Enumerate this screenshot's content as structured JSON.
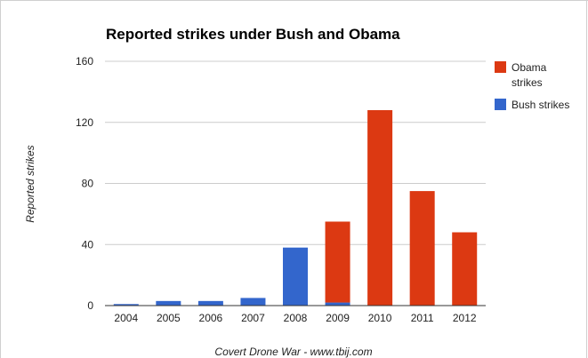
{
  "colors": {
    "obama": "#dc3912",
    "bush": "#3366cc",
    "grid": "#cccccc",
    "axis": "#333333"
  },
  "chart_data": {
    "type": "bar",
    "stacked": true,
    "title": "Reported strikes under Bush and Obama",
    "xlabel": "",
    "ylabel": "Reported strikes",
    "ylim": [
      0,
      160
    ],
    "yticks": [
      0,
      40,
      80,
      120,
      160
    ],
    "grid": true,
    "legend_position": "right",
    "categories": [
      "2004",
      "2005",
      "2006",
      "2007",
      "2008",
      "2009",
      "2010",
      "2011",
      "2012"
    ],
    "series": [
      {
        "name": "Bush strikes",
        "color": "#3366cc",
        "values": [
          1,
          3,
          3,
          5,
          38,
          2,
          0,
          0,
          0
        ]
      },
      {
        "name": "Obama strikes",
        "color": "#dc3912",
        "values": [
          0,
          0,
          0,
          0,
          0,
          53,
          128,
          75,
          48
        ]
      }
    ],
    "legend": [
      {
        "lines": [
          "Obama",
          "strikes"
        ],
        "color": "#dc3912"
      },
      {
        "lines": [
          "Bush strikes"
        ],
        "color": "#3366cc"
      }
    ],
    "source": "Covert Drone War - www.tbij.com"
  }
}
